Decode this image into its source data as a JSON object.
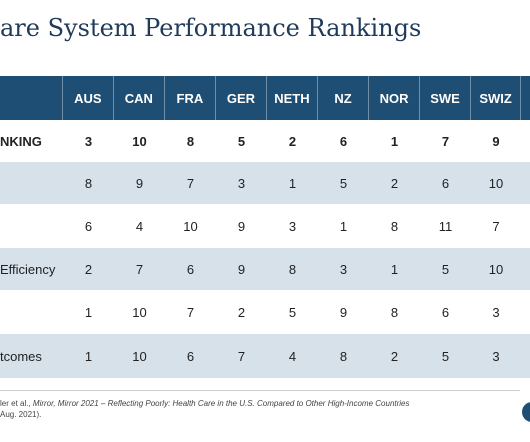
{
  "title": "are System Performance Rankings",
  "columns": [
    "AUS",
    "CAN",
    "FRA",
    "GER",
    "NETH",
    "NZ",
    "NOR",
    "SWE",
    "SWIZ"
  ],
  "rows": [
    {
      "label": "NKING",
      "values": [
        "3",
        "10",
        "8",
        "5",
        "2",
        "6",
        "1",
        "7",
        "9"
      ]
    },
    {
      "label": "",
      "values": [
        "8",
        "9",
        "7",
        "3",
        "1",
        "5",
        "2",
        "6",
        "10"
      ]
    },
    {
      "label": "",
      "values": [
        "6",
        "4",
        "10",
        "9",
        "3",
        "1",
        "8",
        "11",
        "7"
      ]
    },
    {
      "label": "Efficiency",
      "values": [
        "2",
        "7",
        "6",
        "9",
        "8",
        "3",
        "1",
        "5",
        "10"
      ]
    },
    {
      "label": "",
      "values": [
        "1",
        "10",
        "7",
        "2",
        "5",
        "9",
        "8",
        "6",
        "3"
      ]
    },
    {
      "label": "tcomes",
      "values": [
        "1",
        "10",
        "6",
        "7",
        "4",
        "8",
        "2",
        "5",
        "3"
      ]
    }
  ],
  "footer": {
    "line1_prefix": "ler et al., ",
    "line1_italic": "Mirror, Mirror 2021 – Reflecting Poorly: Health Care in the U.S. Compared to Other High-Income Countries",
    "line2": "Aug. 2021)."
  },
  "colors": {
    "header": "#1f4e74",
    "band": "#d6e1ea",
    "title": "#1f3a5a"
  }
}
